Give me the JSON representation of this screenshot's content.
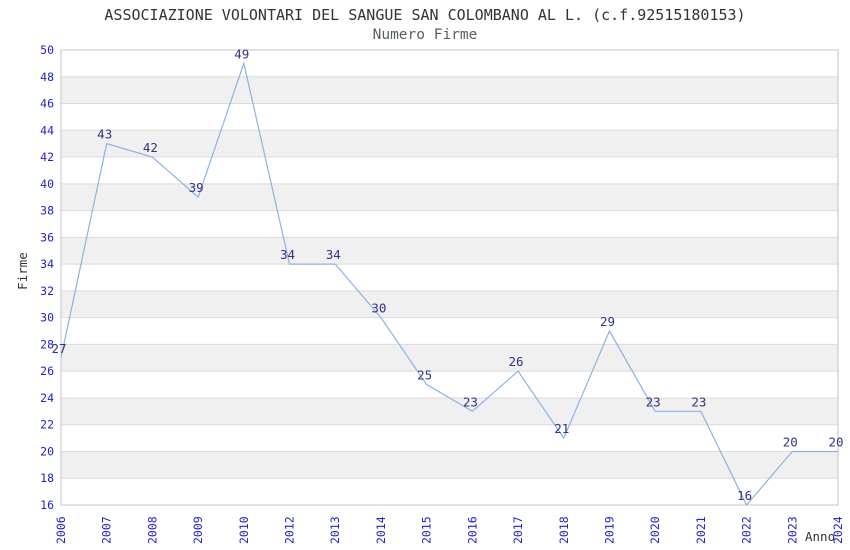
{
  "chart_data": {
    "type": "line",
    "title": "ASSOCIAZIONE VOLONTARI DEL SANGUE SAN COLOMBANO AL L. (c.f.92515180153)",
    "subtitle": "Numero Firme",
    "xlabel": "Anno",
    "ylabel": "Firme",
    "categories": [
      "2006",
      "2007",
      "2008",
      "2009",
      "2010",
      "2012",
      "2013",
      "2014",
      "2015",
      "2016",
      "2017",
      "2018",
      "2019",
      "2020",
      "2021",
      "2022",
      "2023",
      "2024"
    ],
    "values": [
      27,
      43,
      42,
      39,
      49,
      34,
      34,
      30,
      25,
      23,
      26,
      21,
      29,
      23,
      23,
      16,
      20,
      20
    ],
    "ylim": [
      16,
      50
    ],
    "ytick_step": 2,
    "grid": "horizontal-lines-with-zebra-bands",
    "legend": "none",
    "point_labels_visible": true,
    "colors": {
      "line": "#8ab4e4",
      "tick_labels": "#2222cc",
      "point_labels": "#333388",
      "zebra_band": "#f0f0f0",
      "grid_line": "#dcdcdc",
      "plot_border": "#c4c4c4",
      "title": "#333333",
      "subtitle": "#556066",
      "axis_titles": "#333333",
      "background": "#ffffff"
    }
  }
}
